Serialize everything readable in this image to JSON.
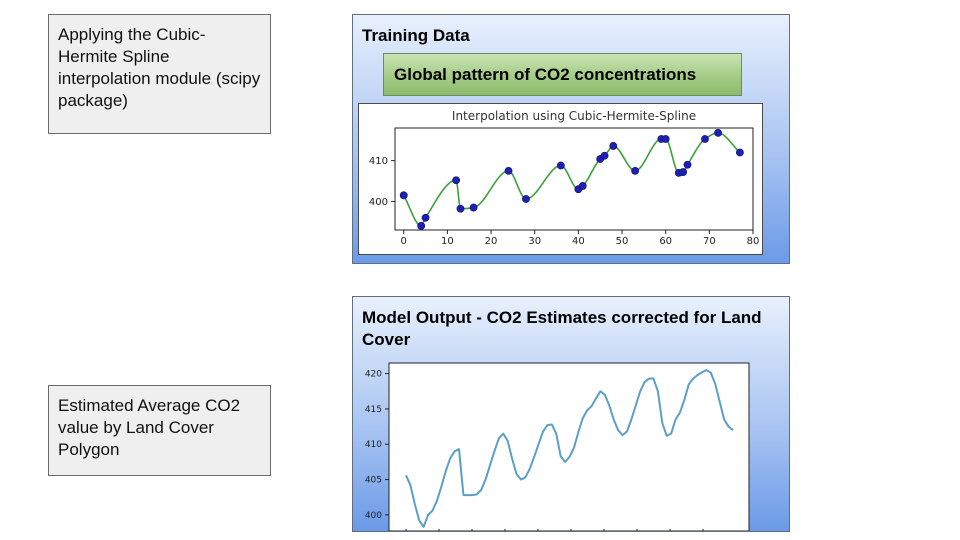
{
  "notes": {
    "interpolation": "Applying the Cubic-Hermite Spline interpolation module (scipy package)",
    "estimate": "Estimated Average CO2 value by Land Cover Polygon"
  },
  "training": {
    "title": "Training Data",
    "subtitle": "Global pattern of CO2 concentrations"
  },
  "output": {
    "title": "Model Output - CO2 Estimates corrected for Land Cover"
  },
  "colors": {
    "spline": "#3aa13a",
    "points": "#1f1fb4",
    "output_line": "#5b9fc9"
  },
  "chart_data": [
    {
      "type": "scatter",
      "title": "Interpolation using Cubic-Hermite-Spline",
      "xlabel": "",
      "ylabel": "",
      "xlim": [
        -2,
        80
      ],
      "ylim": [
        393,
        418
      ],
      "xticks": [
        0,
        10,
        20,
        30,
        40,
        50,
        60,
        70,
        80
      ],
      "yticks": [
        400,
        410
      ],
      "grid": false,
      "series": [
        {
          "x": [
            0,
            4,
            5,
            12,
            13,
            16,
            24,
            28,
            36,
            40,
            41,
            45,
            46,
            48,
            53,
            59,
            60,
            63,
            64,
            65,
            69,
            72,
            77
          ],
          "y": [
            401.5,
            394.0,
            396.0,
            405.2,
            398.2,
            398.5,
            407.5,
            400.6,
            408.8,
            403.0,
            403.8,
            410.4,
            411.2,
            413.6,
            407.5,
            415.3,
            415.3,
            407.0,
            407.2,
            409.0,
            415.3,
            416.8,
            412.0
          ]
        }
      ]
    },
    {
      "type": "line",
      "title": "",
      "xlabel": "",
      "ylabel": "",
      "ylim": [
        398,
        421.5
      ],
      "yticks": [
        400,
        405,
        410,
        415,
        420
      ],
      "grid": false,
      "series": [
        {
          "values": [
            405.6,
            404.2,
            401.5,
            399.2,
            398.3,
            400.0,
            400.6,
            402.0,
            404.0,
            406.2,
            408.0,
            409.0,
            409.3,
            402.8,
            402.8,
            402.8,
            402.9,
            403.5,
            405.0,
            407.0,
            409.0,
            410.8,
            411.5,
            410.5,
            408.0,
            405.8,
            405.0,
            405.3,
            406.5,
            408.2,
            410.0,
            411.8,
            412.7,
            412.8,
            411.5,
            408.3,
            407.5,
            408.2,
            409.5,
            411.7,
            413.7,
            414.8,
            415.4,
            416.5,
            417.5,
            417.0,
            415.5,
            413.5,
            412.0,
            411.3,
            411.8,
            413.5,
            415.5,
            417.5,
            418.8,
            419.3,
            419.3,
            417.5,
            413.0,
            411.2,
            411.5,
            413.5,
            414.5,
            416.3,
            418.5,
            419.3,
            419.8,
            420.2,
            420.5,
            420.1,
            418.5,
            416.0,
            413.5,
            412.5,
            412.0
          ]
        }
      ]
    }
  ]
}
